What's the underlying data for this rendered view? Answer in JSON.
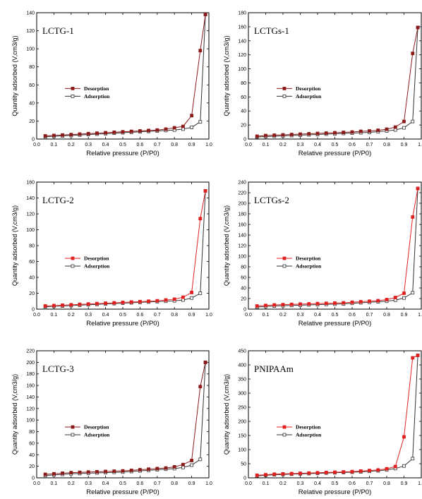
{
  "legend": {
    "desorption": "Desorption",
    "adsorption": "Adsorption"
  },
  "chart_data": [
    {
      "type": "line",
      "title": "LCTG-1",
      "xlabel": "Relative pressure (P/P0)",
      "ylabel": "Quantity adsorbed (V,cm3/g)",
      "xlim": [
        0.0,
        1.0
      ],
      "ylim": [
        0,
        140
      ],
      "xticks": [
        "0.0",
        "0.1",
        "0.2",
        "0.3",
        "0.4",
        "0.5",
        "0.6",
        "0.7",
        "0.8",
        "0.9",
        "1.0"
      ],
      "yticks": [
        "0",
        "20",
        "40",
        "60",
        "80",
        "100",
        "120",
        "140"
      ],
      "legend_position": "center-left",
      "series": [
        {
          "name": "Desorption",
          "color": "#8b1a1a",
          "marker": "filled-square",
          "x": [
            0.05,
            0.1,
            0.15,
            0.2,
            0.25,
            0.3,
            0.35,
            0.4,
            0.45,
            0.5,
            0.55,
            0.6,
            0.65,
            0.7,
            0.75,
            0.8,
            0.85,
            0.9,
            0.95,
            0.98
          ],
          "y": [
            3.5,
            4,
            4.5,
            5,
            5.5,
            6,
            6.5,
            7,
            7.5,
            8,
            8.5,
            9,
            9.5,
            10,
            11,
            12.5,
            14,
            26,
            98,
            138
          ]
        },
        {
          "name": "Adsorption",
          "color": "#333333",
          "marker": "open-square",
          "x": [
            0.05,
            0.1,
            0.15,
            0.2,
            0.25,
            0.3,
            0.35,
            0.4,
            0.45,
            0.5,
            0.55,
            0.6,
            0.65,
            0.7,
            0.75,
            0.8,
            0.85,
            0.9,
            0.95,
            0.98
          ],
          "y": [
            2.5,
            3,
            3.5,
            4,
            4.5,
            5,
            5.5,
            6,
            6.5,
            7,
            7.5,
            8,
            8.5,
            9,
            9.5,
            10,
            11,
            13,
            19,
            138
          ]
        }
      ]
    },
    {
      "type": "line",
      "title": "LCTGs-1",
      "xlabel": "Relative pressure (P/P0)",
      "ylabel": "Quantity adsorbed (V,cm3/g)",
      "xlim": [
        0.0,
        1.0
      ],
      "ylim": [
        0,
        180
      ],
      "xticks": [
        "0.0",
        "0.1",
        "0.2",
        "0.3",
        "0.4",
        "0.5",
        "0.6",
        "0.7",
        "0.8",
        "0.9",
        "1.0"
      ],
      "yticks": [
        "0",
        "20",
        "40",
        "60",
        "80",
        "100",
        "120",
        "140",
        "160",
        "180"
      ],
      "legend_position": "center-left",
      "series": [
        {
          "name": "Desorption",
          "color": "#8b1a1a",
          "marker": "filled-square",
          "x": [
            0.05,
            0.1,
            0.15,
            0.2,
            0.25,
            0.3,
            0.35,
            0.4,
            0.45,
            0.5,
            0.55,
            0.6,
            0.65,
            0.7,
            0.75,
            0.8,
            0.85,
            0.9,
            0.95,
            0.98
          ],
          "y": [
            4,
            5,
            5.5,
            6,
            6.5,
            7,
            7.5,
            8,
            8.5,
            9,
            9.5,
            10,
            11,
            11.5,
            12.5,
            14,
            17,
            25,
            122,
            159
          ]
        },
        {
          "name": "Adsorption",
          "color": "#333333",
          "marker": "open-square",
          "x": [
            0.05,
            0.1,
            0.15,
            0.2,
            0.25,
            0.3,
            0.35,
            0.4,
            0.45,
            0.5,
            0.55,
            0.6,
            0.65,
            0.7,
            0.75,
            0.8,
            0.85,
            0.9,
            0.95,
            0.98
          ],
          "y": [
            3,
            3.5,
            4,
            4.5,
            5,
            5.5,
            6,
            6.5,
            7,
            7.5,
            8,
            8.5,
            9,
            9.5,
            10.5,
            11.5,
            13,
            16,
            25,
            159
          ]
        }
      ]
    },
    {
      "type": "line",
      "title": "LCTG-2",
      "xlabel": "Relative pressure (P/P0)",
      "ylabel": "Quantity adsorbed (V,cm3/g)",
      "xlim": [
        0.0,
        1.0
      ],
      "ylim": [
        0,
        160
      ],
      "xticks": [
        "0.0",
        "0.1",
        "0.2",
        "0.3",
        "0.4",
        "0.5",
        "0.6",
        "0.7",
        "0.8",
        "0.9",
        "1.0"
      ],
      "yticks": [
        "0",
        "20",
        "40",
        "60",
        "80",
        "100",
        "120",
        "140",
        "160"
      ],
      "legend_position": "center-left",
      "series": [
        {
          "name": "Desorption",
          "color": "#e02020",
          "marker": "filled-square",
          "x": [
            0.05,
            0.1,
            0.15,
            0.2,
            0.25,
            0.3,
            0.35,
            0.4,
            0.45,
            0.5,
            0.55,
            0.6,
            0.65,
            0.7,
            0.75,
            0.8,
            0.85,
            0.9,
            0.95,
            0.98
          ],
          "y": [
            4,
            4.5,
            5,
            5.5,
            6,
            6.5,
            7,
            7.5,
            8,
            8.5,
            9,
            9.5,
            10,
            10.5,
            11.5,
            12.5,
            15,
            21,
            114,
            149
          ]
        },
        {
          "name": "Adsorption",
          "color": "#333333",
          "marker": "open-square",
          "x": [
            0.05,
            0.1,
            0.15,
            0.2,
            0.25,
            0.3,
            0.35,
            0.4,
            0.45,
            0.5,
            0.55,
            0.6,
            0.65,
            0.7,
            0.75,
            0.8,
            0.85,
            0.9,
            0.95,
            0.98
          ],
          "y": [
            3,
            3.5,
            4,
            4.5,
            5,
            5.5,
            6,
            6.5,
            7,
            7.5,
            8,
            8.5,
            9,
            9.5,
            10,
            10.5,
            11.5,
            14,
            20,
            149
          ]
        }
      ]
    },
    {
      "type": "line",
      "title": "LCTGs-2",
      "xlabel": "Relative pressure (P/P0)",
      "ylabel": "Quantity adsorbed (V,cm3/g)",
      "xlim": [
        0.0,
        1.0
      ],
      "ylim": [
        0,
        240
      ],
      "xticks": [
        "0.0",
        "0.1",
        "0.2",
        "0.3",
        "0.4",
        "0.5",
        "0.6",
        "0.7",
        "0.8",
        "0.9",
        "1.0"
      ],
      "yticks": [
        "0",
        "20",
        "40",
        "60",
        "80",
        "100",
        "120",
        "140",
        "160",
        "180",
        "200",
        "220",
        "240"
      ],
      "legend_position": "center-left",
      "series": [
        {
          "name": "Desorption",
          "color": "#e02020",
          "marker": "filled-square",
          "x": [
            0.05,
            0.1,
            0.15,
            0.2,
            0.25,
            0.3,
            0.35,
            0.4,
            0.45,
            0.5,
            0.55,
            0.6,
            0.65,
            0.7,
            0.75,
            0.8,
            0.85,
            0.9,
            0.95,
            0.98
          ],
          "y": [
            6,
            7,
            8,
            8.5,
            9,
            9.5,
            10,
            10.5,
            11,
            11.5,
            12,
            13,
            14,
            15,
            16,
            18,
            22,
            30,
            174,
            228
          ]
        },
        {
          "name": "Adsorption",
          "color": "#333333",
          "marker": "open-square",
          "x": [
            0.05,
            0.1,
            0.15,
            0.2,
            0.25,
            0.3,
            0.35,
            0.4,
            0.45,
            0.5,
            0.55,
            0.6,
            0.65,
            0.7,
            0.75,
            0.8,
            0.85,
            0.9,
            0.95,
            0.98
          ],
          "y": [
            4,
            5,
            6,
            6.5,
            7,
            7.5,
            8,
            8.5,
            9,
            9.5,
            10,
            11,
            12,
            13,
            14,
            15,
            17,
            21,
            31,
            228
          ]
        }
      ]
    },
    {
      "type": "line",
      "title": "LCTG-3",
      "xlabel": "Relative pressure (P/P0)",
      "ylabel": "Quantity adsorbed (V,cm3/g)",
      "xlim": [
        0.0,
        1.0
      ],
      "ylim": [
        0,
        220
      ],
      "xticks": [
        "0.0",
        "0.1",
        "0.2",
        "0.3",
        "0.4",
        "0.5",
        "0.6",
        "0.7",
        "0.8",
        "0.9",
        "1.0"
      ],
      "yticks": [
        "0",
        "20",
        "40",
        "60",
        "80",
        "100",
        "120",
        "140",
        "160",
        "180",
        "200",
        "220"
      ],
      "legend_position": "center-left",
      "series": [
        {
          "name": "Desorption",
          "color": "#8b1a1a",
          "marker": "filled-square",
          "x": [
            0.05,
            0.1,
            0.15,
            0.2,
            0.25,
            0.3,
            0.35,
            0.4,
            0.45,
            0.5,
            0.55,
            0.6,
            0.65,
            0.7,
            0.75,
            0.8,
            0.85,
            0.9,
            0.95,
            0.98
          ],
          "y": [
            6,
            7,
            8,
            9,
            9.5,
            10,
            10.5,
            11,
            11.5,
            12,
            13,
            14,
            15,
            16,
            17,
            19,
            23,
            30,
            158,
            200
          ]
        },
        {
          "name": "Adsorption",
          "color": "#333333",
          "marker": "open-square",
          "x": [
            0.05,
            0.1,
            0.15,
            0.2,
            0.25,
            0.3,
            0.35,
            0.4,
            0.45,
            0.5,
            0.55,
            0.6,
            0.65,
            0.7,
            0.75,
            0.8,
            0.85,
            0.9,
            0.95,
            0.98
          ],
          "y": [
            4,
            5,
            6,
            7,
            7.5,
            8,
            8.5,
            9,
            9.5,
            10,
            11,
            12,
            13,
            14,
            15,
            16,
            18,
            22,
            32,
            200
          ]
        }
      ]
    },
    {
      "type": "line",
      "title": "PNIPAAm",
      "xlabel": "Relative pressure (P/P0)",
      "ylabel": "Quantity adsorbed (V,cm3/g)",
      "xlim": [
        0.0,
        1.0
      ],
      "ylim": [
        0,
        450
      ],
      "xticks": [
        "0.0",
        "0.1",
        "0.2",
        "0.3",
        "0.4",
        "0.5",
        "0.6",
        "0.7",
        "0.8",
        "0.9",
        "1.0"
      ],
      "yticks": [
        "0",
        "50",
        "100",
        "150",
        "200",
        "250",
        "300",
        "350",
        "400",
        "450"
      ],
      "legend_position": "center-left",
      "series": [
        {
          "name": "Desorption",
          "color": "#e02020",
          "marker": "filled-square",
          "x": [
            0.05,
            0.1,
            0.15,
            0.2,
            0.25,
            0.3,
            0.35,
            0.4,
            0.45,
            0.5,
            0.55,
            0.6,
            0.65,
            0.7,
            0.75,
            0.8,
            0.85,
            0.9,
            0.95,
            0.98
          ],
          "y": [
            9,
            11,
            13,
            14,
            15,
            16,
            17,
            18,
            19,
            20,
            21,
            22,
            24,
            26,
            28,
            32,
            40,
            145,
            425,
            434
          ]
        },
        {
          "name": "Adsorption",
          "color": "#333333",
          "marker": "open-square",
          "x": [
            0.05,
            0.1,
            0.15,
            0.2,
            0.25,
            0.3,
            0.35,
            0.4,
            0.45,
            0.5,
            0.55,
            0.6,
            0.65,
            0.7,
            0.75,
            0.8,
            0.85,
            0.9,
            0.95,
            0.98
          ],
          "y": [
            7,
            9,
            11,
            12,
            13,
            14,
            15,
            16,
            17,
            18,
            19,
            20,
            21,
            23,
            25,
            28,
            33,
            42,
            68,
            434
          ]
        }
      ]
    }
  ]
}
